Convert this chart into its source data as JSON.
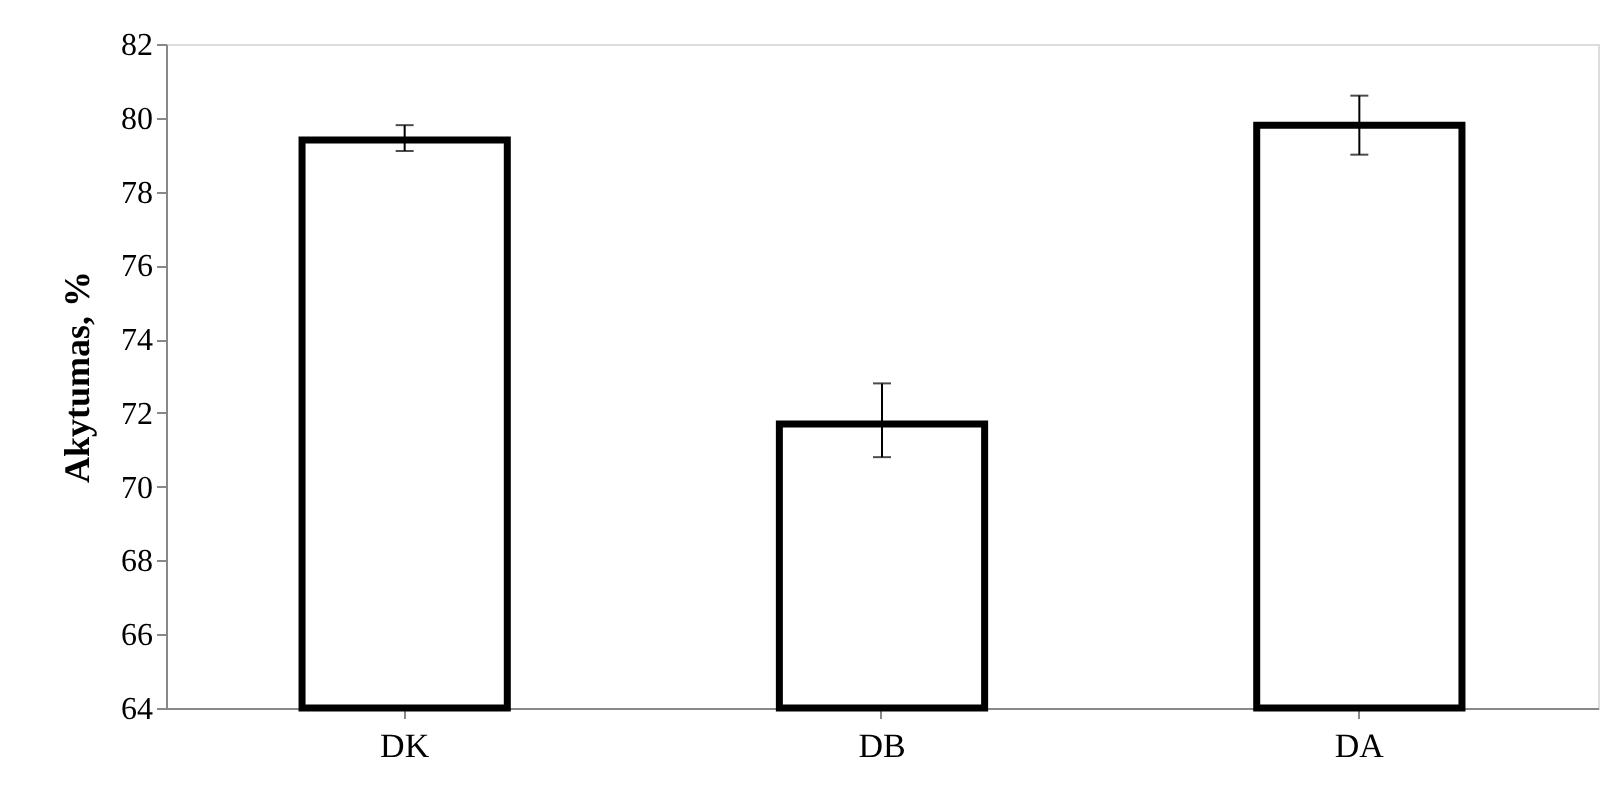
{
  "chart_data": {
    "type": "bar",
    "ylabel": "Akytumas, %",
    "categories": [
      "DK",
      "DB",
      "DA"
    ],
    "values": [
      79.4,
      71.7,
      79.8
    ],
    "colors": [
      "#ffffff",
      "#ffffff",
      "#ffffff"
    ],
    "errors": [
      [
        79.1,
        79.8
      ],
      [
        70.8,
        72.8
      ],
      [
        79.0,
        80.6
      ]
    ],
    "ylim": [
      64,
      82
    ],
    "yticks": [
      64,
      66,
      68,
      70,
      72,
      74,
      76,
      78,
      80,
      82
    ],
    "grid": false
  }
}
